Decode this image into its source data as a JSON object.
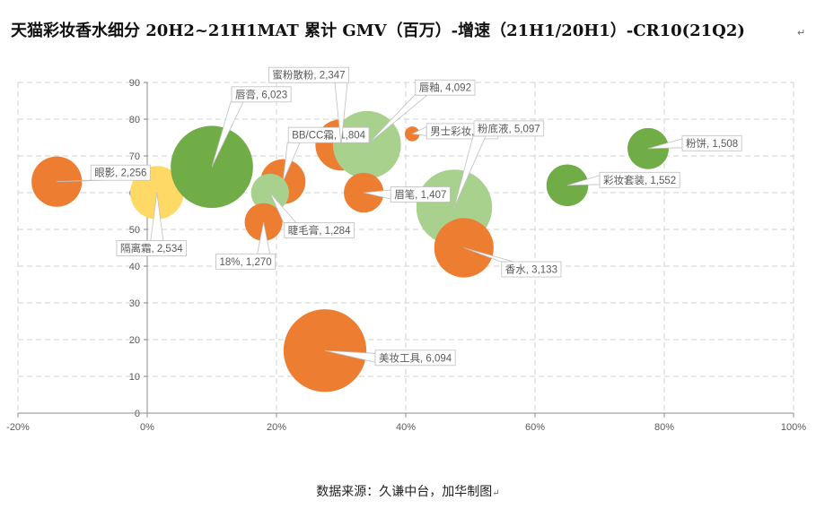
{
  "title": "天猫彩妆香水细分 20H2~21H1MAT 累计 GMV（百万）-增速（21H1/20H1）-CR10(21Q2)",
  "title_mark": "↵",
  "source": "数据来源：久谦中台，加华制图",
  "source_mark": "↵",
  "colors": {
    "orange": "#ED7D31",
    "green": "#70AD47",
    "light_green": "#A9D18E",
    "yellow": "#FFD966",
    "grid": "#D9D9D9"
  },
  "chart_data": {
    "type": "bubble",
    "x_ticks": [
      "-20%",
      "0%",
      "20%",
      "40%",
      "60%",
      "80%",
      "100%"
    ],
    "y_ticks": [
      "0",
      "10",
      "20",
      "30",
      "40",
      "50",
      "60",
      "70",
      "80",
      "90"
    ],
    "xlim": [
      -0.2,
      1.0
    ],
    "ylim": [
      0,
      90
    ],
    "grid": true,
    "points": [
      {
        "name": "眼影",
        "value_label": "2,256",
        "size": 2256,
        "x": -0.14,
        "y": 63,
        "color": "orange"
      },
      {
        "name": "隔离霜",
        "value_label": "2,534",
        "size": 2534,
        "x": 0.015,
        "y": 60,
        "color": "yellow"
      },
      {
        "name": "唇膏",
        "value_label": "6,023",
        "size": 6023,
        "x": 0.1,
        "y": 67,
        "color": "green"
      },
      {
        "name": "BB/CC霜",
        "value_label": "1,804",
        "size": 1804,
        "x": 0.21,
        "y": 63,
        "color": "orange"
      },
      {
        "name": "睫毛膏",
        "value_label": "1,284",
        "size": 1284,
        "x": 0.19,
        "y": 60,
        "color": "light_green"
      },
      {
        "name": "18%",
        "value_label": "1,270",
        "size": 1270,
        "x": 0.18,
        "y": 52,
        "color": "orange"
      },
      {
        "name": "蜜粉散粉",
        "value_label": "2,347",
        "size": 2347,
        "x": 0.3,
        "y": 73,
        "color": "orange"
      },
      {
        "name": "唇釉",
        "value_label": "4,092",
        "size": 4092,
        "x": 0.34,
        "y": 73,
        "color": "light_green"
      },
      {
        "name": "眉笔",
        "value_label": "1,407",
        "size": 1407,
        "x": 0.335,
        "y": 60,
        "color": "orange"
      },
      {
        "name": "男士彩妆",
        "value_label": "194",
        "size": 194,
        "x": 0.41,
        "y": 76,
        "color": "orange"
      },
      {
        "name": "粉底液",
        "value_label": "5,097",
        "size": 5097,
        "x": 0.475,
        "y": 56,
        "color": "light_green"
      },
      {
        "name": "香水",
        "value_label": "3,133",
        "size": 3133,
        "x": 0.49,
        "y": 45,
        "color": "orange"
      },
      {
        "name": "美妆工具",
        "value_label": "6,094",
        "size": 6094,
        "x": 0.275,
        "y": 17,
        "color": "orange"
      },
      {
        "name": "彩妆套装",
        "value_label": "1,552",
        "size": 1552,
        "x": 0.65,
        "y": 62,
        "color": "green"
      },
      {
        "name": "粉饼",
        "value_label": "1,508",
        "size": 1508,
        "x": 0.775,
        "y": 72,
        "color": "green"
      }
    ]
  }
}
